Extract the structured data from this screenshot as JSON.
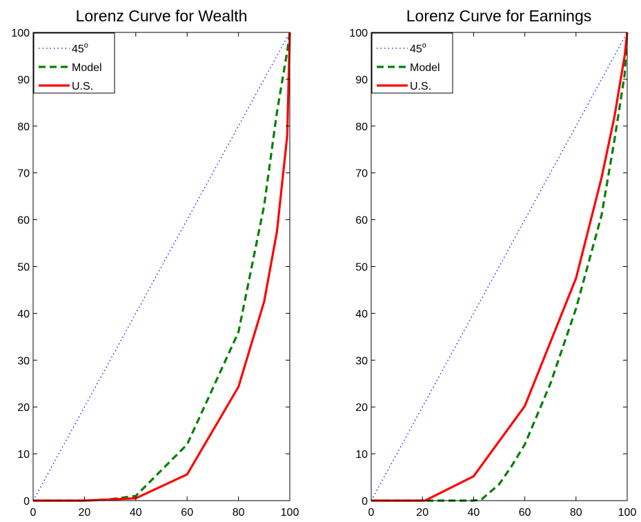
{
  "chart_data": [
    {
      "type": "line",
      "title": "Lorenz Curve for Wealth",
      "xlabel": "",
      "ylabel": "",
      "xlim": [
        0,
        100
      ],
      "ylim": [
        0,
        100
      ],
      "xticks": [
        0,
        20,
        40,
        60,
        80,
        100
      ],
      "yticks": [
        0,
        10,
        20,
        30,
        40,
        50,
        60,
        70,
        80,
        90,
        100
      ],
      "grid": false,
      "legend": "top-left",
      "series": [
        {
          "name": "45",
          "name_sup": "o",
          "style": "dotted",
          "color": "#0000ff",
          "x": [
            0,
            100
          ],
          "y": [
            0,
            100
          ]
        },
        {
          "name": "Model",
          "style": "dashed",
          "color": "#007f00",
          "x": [
            0,
            10,
            20,
            30,
            40,
            60,
            80,
            90,
            95,
            99,
            100
          ],
          "y": [
            0,
            0,
            0,
            0.3,
            1,
            12,
            36,
            63,
            83,
            96,
            100
          ]
        },
        {
          "name": "U.S.",
          "style": "solid",
          "color": "#ff0000",
          "x": [
            0,
            20,
            40,
            60,
            80,
            90,
            95,
            99,
            100
          ],
          "y": [
            0,
            0,
            0.5,
            5.6,
            24.3,
            42.5,
            57.5,
            78,
            100
          ]
        }
      ]
    },
    {
      "type": "line",
      "title": "Lorenz Curve for Earnings",
      "xlabel": "",
      "ylabel": "",
      "xlim": [
        0,
        100
      ],
      "ylim": [
        0,
        100
      ],
      "xticks": [
        0,
        20,
        40,
        60,
        80,
        100
      ],
      "yticks": [
        0,
        10,
        20,
        30,
        40,
        50,
        60,
        70,
        80,
        90,
        100
      ],
      "grid": false,
      "legend": "top-left",
      "series": [
        {
          "name": "45",
          "name_sup": "o",
          "style": "dotted",
          "color": "#0000ff",
          "x": [
            0,
            100
          ],
          "y": [
            0,
            100
          ]
        },
        {
          "name": "Model",
          "style": "dashed",
          "color": "#007f00",
          "x": [
            0,
            20,
            40,
            43,
            50,
            55,
            60,
            70,
            80,
            90,
            95,
            99,
            100
          ],
          "y": [
            0,
            0,
            0,
            0.2,
            3.5,
            7.5,
            12,
            25,
            41,
            61,
            77,
            91,
            100
          ]
        },
        {
          "name": "U.S.",
          "style": "solid",
          "color": "#ff0000",
          "x": [
            0,
            20,
            21,
            40,
            60,
            80,
            90,
            95,
            99,
            100
          ],
          "y": [
            0,
            0,
            0,
            5.2,
            20.2,
            47.5,
            69,
            82,
            95,
            100
          ]
        }
      ]
    }
  ]
}
